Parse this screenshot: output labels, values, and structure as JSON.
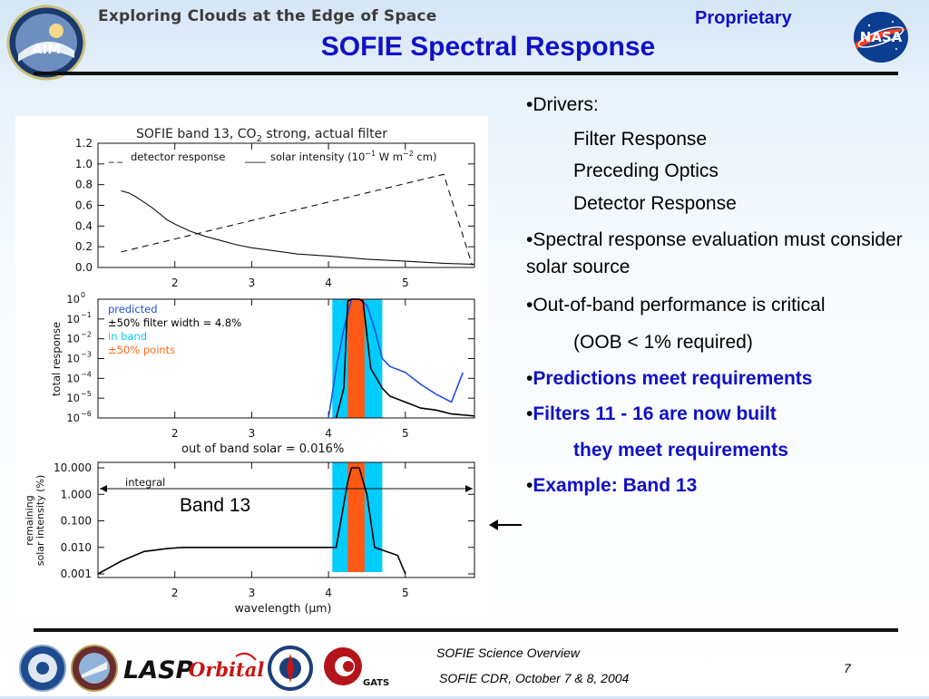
{
  "header": {
    "title": "Exploring Clouds at the Edge of Space",
    "proprietary": "Proprietary",
    "slide_title": "SOFIE Spectral Response",
    "logo_left_text": "AIM",
    "logo_right_text": "NASA"
  },
  "bullets": [
    {
      "text": "•Drivers:",
      "style": "normal"
    },
    {
      "text": "Filter Response",
      "style": "indent"
    },
    {
      "text": "Preceding Optics",
      "style": "indent"
    },
    {
      "text": "Detector Response",
      "style": "indent"
    },
    {
      "text": "•Spectral response evaluation must consider solar source",
      "style": "normal"
    },
    {
      "text": "•Out-of-band performance is critical",
      "style": "normal"
    },
    {
      "text": "(OOB < 1% required)",
      "style": "indent"
    },
    {
      "text": "Predictions meet requirements",
      "style": "blue"
    },
    {
      "text": "Filters 11 - 16 are now built",
      "style": "blue"
    },
    {
      "text": "they meet requirements",
      "style": "blue-indent"
    },
    {
      "text": "Example:  Band 13",
      "style": "blue"
    }
  ],
  "band_label": "Band 13",
  "footer": {
    "line1": "SOFIE Science Overview",
    "line2": "SOFIE CDR, October 7 & 8, 2004",
    "page_number": "7",
    "logos": {
      "lasp": "LASP",
      "orbital": "Orbital",
      "gats": "GATS"
    }
  },
  "colors": {
    "title_blue": "#1010c8",
    "band_cyan": "#00ccff",
    "band_orange": "#ff5a14",
    "predicted_blue": "#1f4fdf",
    "points_orange": "#ff6a14"
  },
  "chart_data": [
    {
      "type": "line",
      "title": "SOFIE band 13, CO",
      "title_subscript": "2",
      "title_suffix": " strong, actual filter",
      "xlim": [
        1.0,
        5.9
      ],
      "ylim": [
        0.0,
        1.2
      ],
      "xticks": [
        "2",
        "3",
        "4",
        "5"
      ],
      "yticks": [
        "0.0",
        "0.2",
        "0.4",
        "0.6",
        "0.8",
        "1.0",
        "1.2"
      ],
      "legend": {
        "detector_label": "detector response",
        "solar_label": "solar intensity (10",
        "solar_exp1": "−1",
        "solar_mid": " W m",
        "solar_exp2": "−2",
        "solar_end": " cm)"
      },
      "series": [
        {
          "name": "detector response",
          "style": "dashed",
          "x": [
            1.3,
            5.5,
            5.87
          ],
          "y": [
            0.15,
            0.9,
            0.02
          ]
        },
        {
          "name": "solar intensity",
          "style": "solid",
          "x": [
            1.3,
            1.4,
            1.5,
            1.6,
            1.7,
            1.8,
            1.9,
            2.0,
            2.2,
            2.4,
            2.6,
            2.8,
            3.0,
            3.3,
            3.6,
            4.0,
            4.5,
            5.0,
            5.5,
            5.9
          ],
          "y": [
            0.74,
            0.72,
            0.68,
            0.63,
            0.58,
            0.52,
            0.46,
            0.42,
            0.35,
            0.3,
            0.26,
            0.22,
            0.19,
            0.16,
            0.13,
            0.11,
            0.08,
            0.06,
            0.04,
            0.03
          ]
        }
      ]
    },
    {
      "type": "line",
      "ylabel": "total response",
      "yscale": "log",
      "xlim": [
        1.0,
        5.9
      ],
      "ylim_exp": [
        -6,
        0
      ],
      "xticks": [
        "2",
        "3",
        "4",
        "5"
      ],
      "yticks": [
        "10",
        "10",
        "10",
        "10",
        "10",
        "10",
        "10"
      ],
      "ytick_exps": [
        "0",
        "−1",
        "−2",
        "−3",
        "−4",
        "−5",
        "−6"
      ],
      "band_cyan": [
        4.05,
        4.7
      ],
      "band_orange": [
        4.25,
        4.47
      ],
      "legend": [
        {
          "label": "predicted",
          "color": "#1f4fdf"
        },
        {
          "label": "±50% filter width = 4.8%",
          "color": "#000000"
        },
        {
          "label": "in band",
          "color": "#00ccff"
        },
        {
          "label": "±50% points",
          "color": "#ff6a14"
        }
      ],
      "series": [
        {
          "name": "predicted",
          "color": "#1f4fdf",
          "x": [
            4.0,
            4.1,
            4.2,
            4.3,
            4.4,
            4.5,
            4.6,
            4.7,
            4.8,
            5.0,
            5.2,
            5.4,
            5.6,
            5.75
          ],
          "log_y": [
            -6.0,
            -3.5,
            -1.5,
            0.0,
            0.0,
            -0.3,
            -1.5,
            -3.0,
            -3.4,
            -3.7,
            -4.3,
            -4.8,
            -5.2,
            -3.7
          ]
        },
        {
          "name": "measured",
          "color": "#000000",
          "x": [
            4.1,
            4.2,
            4.25,
            4.3,
            4.4,
            4.45,
            4.55,
            4.7,
            4.8,
            5.0,
            5.2,
            5.4,
            5.6,
            5.9
          ],
          "log_y": [
            -6.0,
            -4.5,
            -0.1,
            0.0,
            0.0,
            -0.1,
            -3.5,
            -4.5,
            -4.9,
            -5.2,
            -5.5,
            -5.6,
            -5.8,
            -5.9
          ]
        }
      ]
    },
    {
      "type": "line",
      "title": "out of band solar = 0.016%",
      "ylabel": "remaining solar intensity (%)",
      "xlabel": "wavelength (μm)",
      "yscale": "log",
      "xlim": [
        1.0,
        5.9
      ],
      "ylim": [
        0.001,
        10.0
      ],
      "xticks": [
        "2",
        "3",
        "4",
        "5"
      ],
      "yticks": [
        "10.000",
        "1.000",
        "0.100",
        "0.010",
        "0.001"
      ],
      "band_cyan": [
        4.05,
        4.7
      ],
      "band_orange": [
        4.25,
        4.47
      ],
      "annotation": "integral",
      "series": [
        {
          "name": "remaining solar intensity",
          "color": "#000000",
          "x": [
            1.0,
            1.3,
            1.6,
            1.9,
            2.1,
            2.5,
            3.0,
            3.5,
            4.0,
            4.1,
            4.25,
            4.3,
            4.4,
            4.5,
            4.6,
            4.9,
            5.0
          ],
          "y": [
            0.001,
            0.003,
            0.007,
            0.009,
            0.01,
            0.01,
            0.01,
            0.01,
            0.01,
            0.01,
            3.0,
            10.0,
            10.0,
            1.0,
            0.01,
            0.005,
            0.001
          ]
        }
      ]
    }
  ]
}
